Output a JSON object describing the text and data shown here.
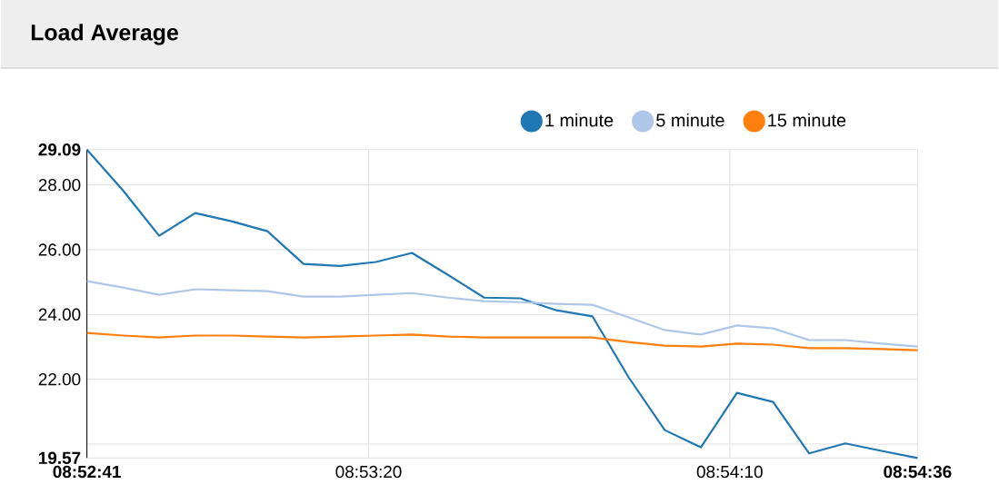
{
  "chart_data": {
    "type": "line",
    "title": "Load Average",
    "x": [
      8.878056,
      8.879444,
      8.880833,
      8.882222,
      8.883611,
      8.885,
      8.886389,
      8.887778,
      8.889167,
      8.890556,
      8.891944,
      8.893333,
      8.894722,
      8.896111,
      8.8975,
      8.898889,
      8.900278,
      8.901667,
      8.903056,
      8.904444,
      8.905833,
      8.907222,
      8.908611,
      8.91
    ],
    "series": [
      {
        "name": "1 minute",
        "color": "#1f77b4",
        "values": [
          29.09,
          27.83,
          26.43,
          27.13,
          26.88,
          26.57,
          25.56,
          25.5,
          25.62,
          25.9,
          25.22,
          24.52,
          24.5,
          24.13,
          23.94,
          22.06,
          20.43,
          19.9,
          21.58,
          21.3,
          19.71,
          20.02,
          19.79,
          19.57
        ]
      },
      {
        "name": "5 minute",
        "color": "#aec7e8",
        "values": [
          25.03,
          24.83,
          24.61,
          24.78,
          24.75,
          24.72,
          24.55,
          24.55,
          24.61,
          24.66,
          24.52,
          24.41,
          24.38,
          24.33,
          24.3,
          23.91,
          23.52,
          23.38,
          23.66,
          23.57,
          23.21,
          23.21,
          23.1,
          23.01
        ]
      },
      {
        "name": "15 minute",
        "color": "#ff7f0e",
        "values": [
          23.43,
          23.35,
          23.29,
          23.35,
          23.35,
          23.32,
          23.29,
          23.32,
          23.35,
          23.38,
          23.32,
          23.29,
          23.29,
          23.29,
          23.29,
          23.15,
          23.04,
          23.01,
          23.1,
          23.07,
          22.96,
          22.96,
          22.93,
          22.9
        ]
      }
    ],
    "xlim": [
      8.878056,
      8.91
    ],
    "xticks": [
      {
        "value": 8.878056,
        "label": "08:52:41"
      },
      {
        "value": 8.888889,
        "label": "08:53:20"
      },
      {
        "value": 8.902778,
        "label": "08:54:10"
      },
      {
        "value": 8.91,
        "label": "08:54:36"
      }
    ],
    "ylim": [
      19.57,
      29.09
    ],
    "yticks": [
      19.57,
      {
        "value": 20,
        "label": null
      },
      {
        "value": 22,
        "label": "22.00"
      },
      {
        "value": 24,
        "label": "24.00"
      },
      {
        "value": 26,
        "label": "26.00"
      },
      {
        "value": 28,
        "label": "28.00"
      },
      29.09
    ],
    "grid": true,
    "legend": "top right",
    "marker": "none",
    "line_style": "solid"
  }
}
